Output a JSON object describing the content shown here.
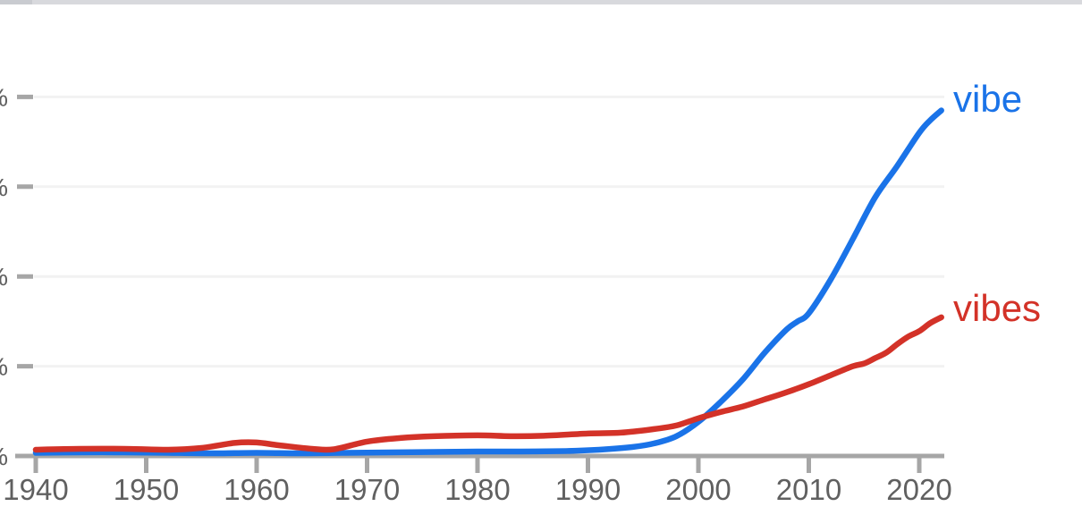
{
  "page": {
    "background": "#ffffff",
    "top_strip_color": "#d8d9dd",
    "top_strip_cap_color": "#c9cbd0"
  },
  "chart_data": {
    "type": "line",
    "x_ticks": [
      "1940",
      "1950",
      "1960",
      "1970",
      "1980",
      "1990",
      "2000",
      "2010",
      "2020"
    ],
    "x_range": [
      1940,
      2022
    ],
    "y_axis": {
      "unit_suffix": "%",
      "labels_clipped": true,
      "note": "numeric y-axis labels are cut off at the left edge of the screenshot; only the '%' ends are visible",
      "num_ticks": 5,
      "gridlines": true
    },
    "value_units": "y-axis divisions above baseline (0 = baseline, 1 = one gridline spacing)",
    "legend_position": "right-end-of-lines",
    "series": [
      {
        "name": "vibe",
        "color": "#1a73e8",
        "points": [
          [
            1940,
            0.035
          ],
          [
            1944,
            0.04
          ],
          [
            1948,
            0.04
          ],
          [
            1952,
            0.035
          ],
          [
            1956,
            0.03
          ],
          [
            1960,
            0.035
          ],
          [
            1964,
            0.03
          ],
          [
            1968,
            0.035
          ],
          [
            1972,
            0.04
          ],
          [
            1976,
            0.045
          ],
          [
            1980,
            0.05
          ],
          [
            1984,
            0.05
          ],
          [
            1988,
            0.055
          ],
          [
            1991,
            0.07
          ],
          [
            1994,
            0.1
          ],
          [
            1996,
            0.14
          ],
          [
            1998,
            0.22
          ],
          [
            2000,
            0.38
          ],
          [
            2002,
            0.6
          ],
          [
            2004,
            0.85
          ],
          [
            2006,
            1.15
          ],
          [
            2008,
            1.41
          ],
          [
            2009,
            1.5
          ],
          [
            2010,
            1.59
          ],
          [
            2012,
            1.97
          ],
          [
            2014,
            2.42
          ],
          [
            2016,
            2.88
          ],
          [
            2018,
            3.23
          ],
          [
            2020,
            3.6
          ],
          [
            2021,
            3.74
          ],
          [
            2022,
            3.85
          ]
        ]
      },
      {
        "name": "vibes",
        "color": "#d33228",
        "points": [
          [
            1940,
            0.07
          ],
          [
            1944,
            0.08
          ],
          [
            1948,
            0.08
          ],
          [
            1952,
            0.07
          ],
          [
            1955,
            0.09
          ],
          [
            1958,
            0.145
          ],
          [
            1960,
            0.15
          ],
          [
            1962,
            0.12
          ],
          [
            1965,
            0.08
          ],
          [
            1967,
            0.075
          ],
          [
            1970,
            0.16
          ],
          [
            1973,
            0.2
          ],
          [
            1976,
            0.22
          ],
          [
            1980,
            0.23
          ],
          [
            1983,
            0.22
          ],
          [
            1986,
            0.225
          ],
          [
            1990,
            0.25
          ],
          [
            1993,
            0.26
          ],
          [
            1996,
            0.3
          ],
          [
            1998,
            0.34
          ],
          [
            2000,
            0.42
          ],
          [
            2002,
            0.49
          ],
          [
            2004,
            0.55
          ],
          [
            2006,
            0.63
          ],
          [
            2008,
            0.71
          ],
          [
            2010,
            0.8
          ],
          [
            2012,
            0.9
          ],
          [
            2014,
            1.0
          ],
          [
            2015,
            1.03
          ],
          [
            2016,
            1.09
          ],
          [
            2017,
            1.15
          ],
          [
            2018,
            1.245
          ],
          [
            2019,
            1.33
          ],
          [
            2020,
            1.39
          ],
          [
            2021,
            1.48
          ],
          [
            2022,
            1.545
          ]
        ]
      }
    ],
    "style": {
      "axis_color": "#a6a6a6",
      "tick_label_color": "#606060",
      "gridline_color": "#f2f2f2",
      "line_width": 6.5
    }
  }
}
